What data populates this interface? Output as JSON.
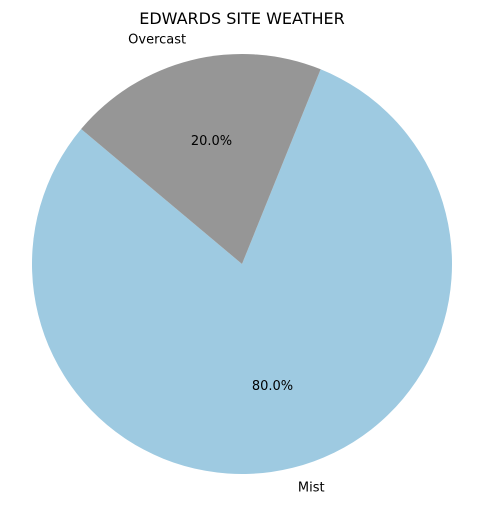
{
  "chart_data": {
    "type": "pie",
    "title": "EDWARDS SITE WEATHER",
    "slices": [
      {
        "label": "Mist",
        "value": 80.0,
        "pct_label": "80.0%",
        "color": "#9ecae1"
      },
      {
        "label": "Overcast",
        "value": 20.0,
        "pct_label": "20.0%",
        "color": "#969696"
      }
    ],
    "start_angle_deg": 140,
    "direction": "counterclockwise",
    "legend": "none"
  }
}
